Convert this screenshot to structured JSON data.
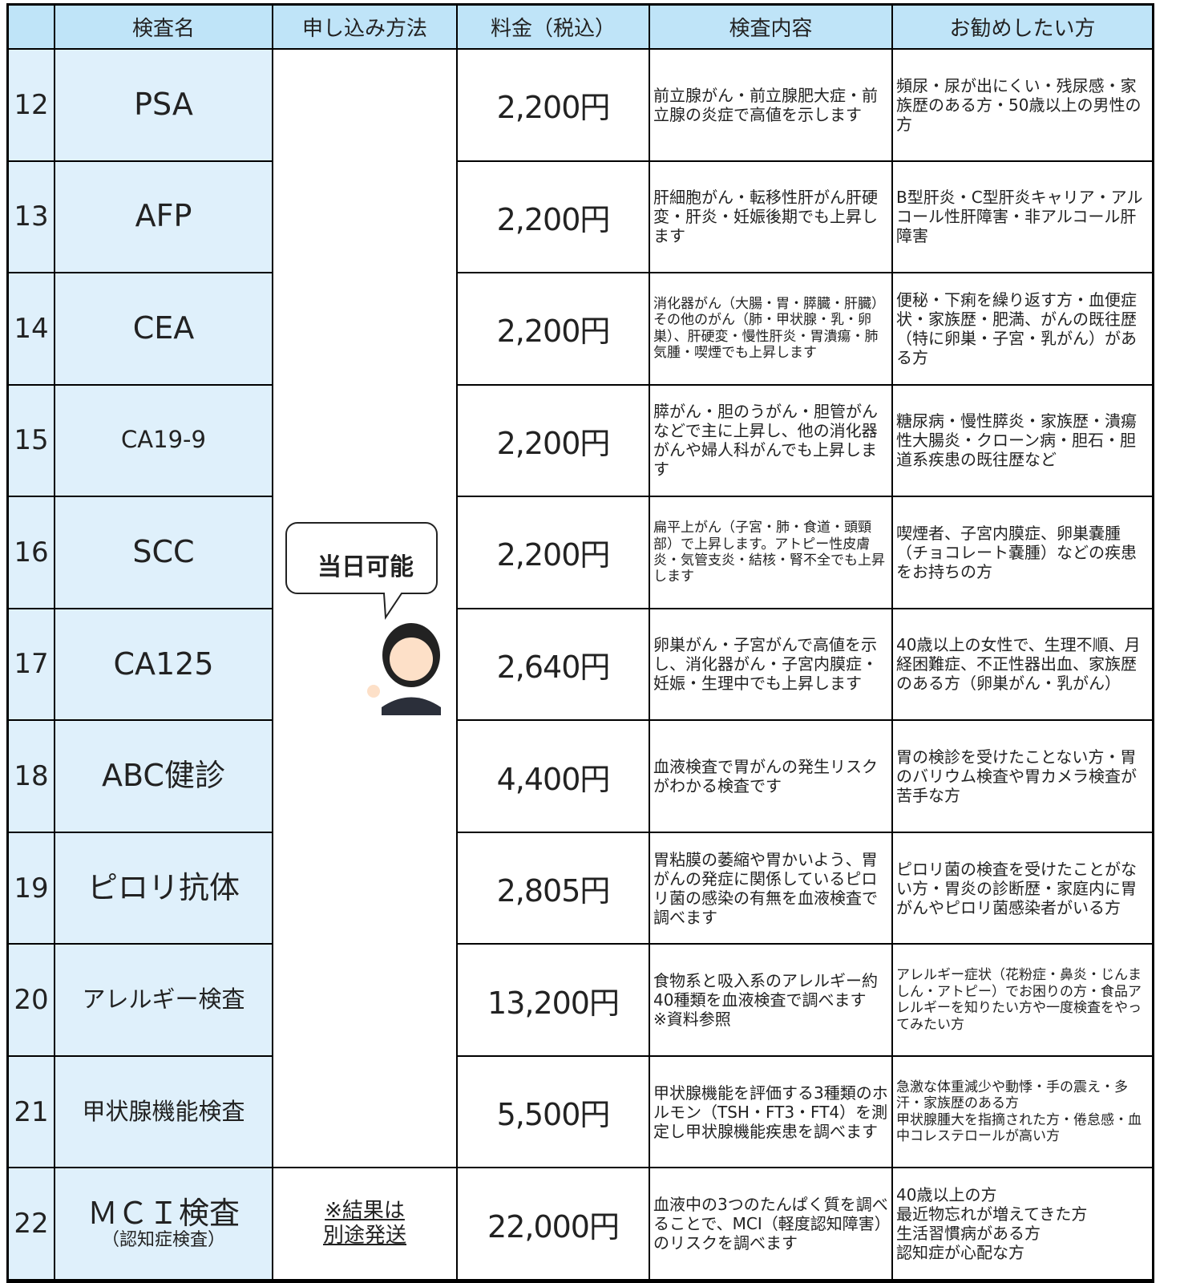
{
  "header": [
    "検査名",
    "申し込み方法",
    "料金（税込）",
    "検査内容",
    "お勧めしたい方"
  ],
  "method": "当日可能",
  "method_note": [
    "※結果は",
    "別途発送"
  ],
  "rows": [
    {
      "no": "12",
      "name": "PSA",
      "price": "2,200円",
      "content": "前立腺がん・前立腺肥大症・前立腺の炎症で高値を示します",
      "recommend": "頻尿・尿が出にくい・残尿感・家族歴のある方・50歳以上の男性の方"
    },
    {
      "no": "13",
      "name": "AFP",
      "price": "2,200円",
      "content": "肝細胞がん・転移性肝がん肝硬変・肝炎・妊娠後期でも上昇します",
      "recommend": "B型肝炎・C型肝炎キャリア・アルコール性肝障害・非アルコール肝障害"
    },
    {
      "no": "14",
      "name": "CEA",
      "price": "2,200円",
      "content": "消化器がん（大腸・胃・膵臓・肝臓）その他のがん（肺・甲状腺・乳・卵巣）、肝硬変・慢性肝炎・胃潰瘍・肺気腫・喫煙でも上昇します",
      "recommend": "便秘・下痢を繰り返す方・血便症状・家族歴・肥満、がんの既往歴（特に卵巣・子宮・乳がん）がある方"
    },
    {
      "no": "15",
      "name": "CA19-9",
      "price": "2,200円",
      "content": "膵がん・胆のうがん・胆管がんなどで主に上昇し、他の消化器がんや婦人科がんでも上昇します",
      "recommend": "糖尿病・慢性膵炎・家族歴・潰瘍性大腸炎・クローン病・胆石・胆道系疾患の既往歴など"
    },
    {
      "no": "16",
      "name": "SCC",
      "price": "2,200円",
      "content": "扁平上がん（子宮・肺・食道・頭頸部）で上昇します。アトピー性皮膚炎・気管支炎・結核・腎不全でも上昇します",
      "recommend": "喫煙者、子宮内膜症、卵巣嚢腫（チョコレート嚢腫）などの疾患をお持ちの方"
    },
    {
      "no": "17",
      "name": "CA125",
      "price": "2,640円",
      "content": "卵巣がん・子宮がんで高値を示し、消化器がん・子宮内膜症・妊娠・生理中でも上昇します",
      "recommend": "40歳以上の女性で、生理不順、月経困難症、不正性器出血、家族歴のある方（卵巣がん・乳がん）"
    },
    {
      "no": "18",
      "name": "ABC健診",
      "price": "4,400円",
      "content": "血液検査で胃がんの発生リスクがわかる検査です",
      "recommend": "胃の検診を受けたことない方・胃のバリウム検査や胃カメラ検査が苦手な方"
    },
    {
      "no": "19",
      "name": "ピロリ抗体",
      "price": "2,805円",
      "content": "胃粘膜の萎縮や胃かいよう、胃がんの発症に関係しているピロリ菌の感染の有無を血液検査で調べます",
      "recommend": "ピロリ菌の検査を受けたことがない方・胃炎の診断歴・家庭内に胃がんやピロリ菌感染者がいる方"
    },
    {
      "no": "20",
      "name": "アレルギー検査",
      "price": "13,200円",
      "content": "食物系と吸入系のアレルギー約40種類を血液検査で調べます　※資料参照",
      "recommend": "アレルギー症状（花粉症・鼻炎・じんましん・アトピー）でお困りの方・食品アレルギーを知りたい方や一度検査をやってみたい方"
    },
    {
      "no": "21",
      "name": "甲状腺機能検査",
      "price": "5,500円",
      "content": "甲状腺機能を評価する3種類のホルモン（TSH・FT3・FT4）を測定し甲状腺機能疾患を調べます",
      "recommend": "急激な体重減少や動悸・手の震え・多汗・家族歴のある方\n甲状腺腫大を指摘された方・倦怠感・血中コレステロールが高い方"
    },
    {
      "no": "22",
      "name": "ＭＣＩ検査",
      "sub": "（認知症検査）",
      "price": "22,000円",
      "content": "血液中の3つのたんぱく質を調べることで、MCI（軽度認知障害）のリスクを調べます",
      "recommend": "40歳以上の方\n最近物忘れが増えてきた方\n生活習慣病がある方\n認知症が心配な方"
    }
  ]
}
